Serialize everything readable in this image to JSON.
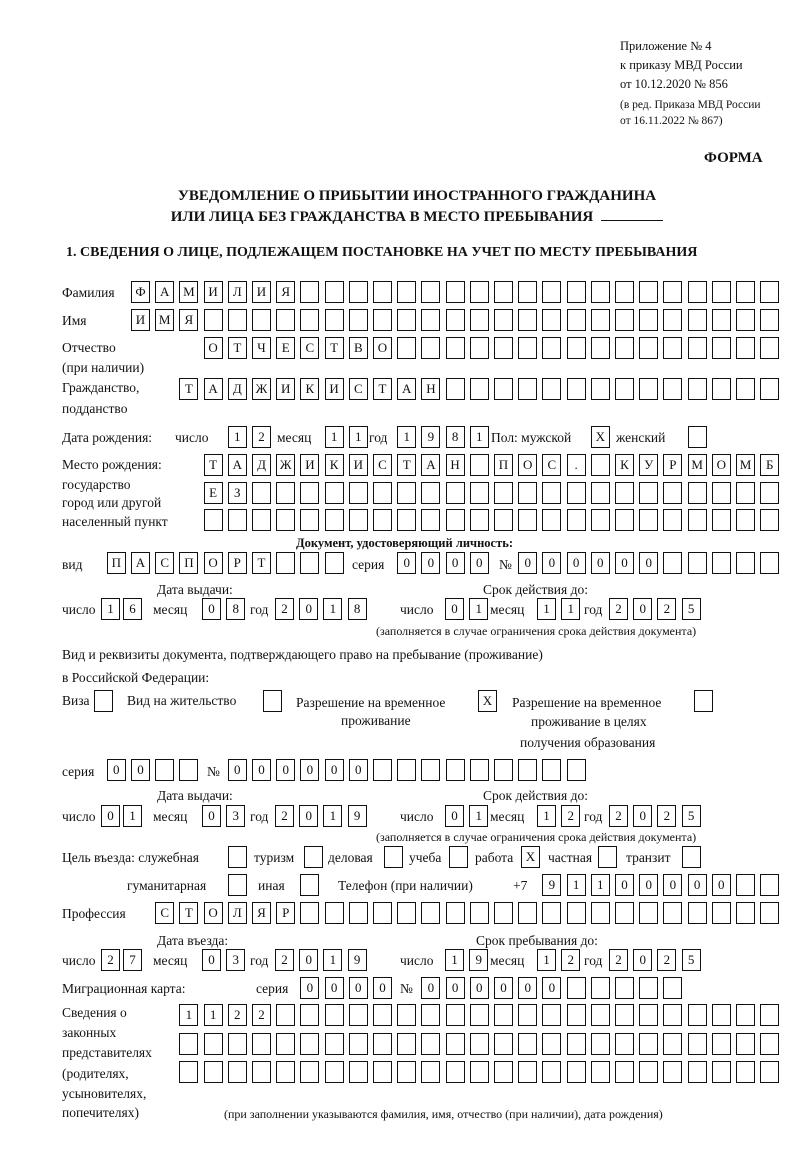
{
  "header": {
    "appendix": "Приложение № 4",
    "order": "к приказу МВД России",
    "order_date": "от 10.12.2020 № 856",
    "edition_1": "(в ред. Приказа МВД России",
    "edition_2": "от 16.11.2022 № 867)",
    "form_label": "ФОРМА",
    "title_1": "УВЕДОМЛЕНИЕ О ПРИБЫТИИ ИНОСТРАННОГО ГРАЖДАНИНА",
    "title_2": "ИЛИ ЛИЦА БЕЗ ГРАЖДАНСТВА В МЕСТО ПРЕБЫВАНИЯ",
    "section_1": "1. СВЕДЕНИЯ О ЛИЦЕ, ПОДЛЕЖАЩЕМ ПОСТАНОВКЕ НА УЧЕТ ПО МЕСТУ ПРЕБЫВАНИЯ"
  },
  "labels": {
    "surname": "Фамилия",
    "name": "Имя",
    "patronymic": "Отчество",
    "patronymic_note": "(при наличии)",
    "citizenship": "Гражданство,",
    "citizenship_2": "подданство",
    "birth_date": "Дата рождения:",
    "day": "число",
    "month": "месяц",
    "year": "год",
    "sex_male": "Пол: мужской",
    "sex_female": "женский",
    "birth_place": "Место рождения:",
    "birth_place_2": "государство",
    "birth_place_3": "город или другой",
    "birth_place_4": "населенный пункт",
    "id_doc": "Документ, удостоверяющий личность:",
    "kind": "вид",
    "series": "серия",
    "number": "№",
    "issue_date": "Дата выдачи:",
    "valid_until": "Срок действия до:",
    "valid_note": "(заполняется в случае ограничения срока действия документа)",
    "stay_doc_1": "Вид и реквизиты документа, подтверждающего право на пребывание (проживание)",
    "stay_doc_2": "в Российской Федерации:",
    "visa": "Виза",
    "residence": "Вид на жительство",
    "trp_1": "Разрешение на временное",
    "trp_2": "проживание",
    "trp_edu_1": "Разрешение на временное",
    "trp_edu_2": "проживание в целях",
    "trp_edu_3": "получения образования",
    "purpose": "Цель въезда: служебная",
    "tourism": "туризм",
    "business": "деловая",
    "study": "учеба",
    "work": "работа",
    "private": "частная",
    "transit": "транзит",
    "humanitarian": "гуманитарная",
    "other": "иная",
    "phone": "Телефон (при наличии)",
    "phone_prefix": "+7",
    "profession": "Профессия",
    "entry_date": "Дата въезда:",
    "stay_until": "Срок пребывания до:",
    "migration_card": "Миграционная карта:",
    "reps_1": "Сведения о",
    "reps_2": "законных",
    "reps_3": "представителях",
    "reps_4": "(родителях,",
    "reps_5": "усыновителях,",
    "reps_6": "попечителях)",
    "reps_note": "(при заполнении указываются фамилия, имя, отчество (при наличии), дата рождения)"
  },
  "values": {
    "surname": "ФАМИЛИЯ",
    "name": "ИМЯ",
    "patronymic": "ОТЧЕСТВО",
    "citizenship": "ТАДЖИКИСТАН",
    "birth_day": "12",
    "birth_month": "11",
    "birth_year": "1981",
    "sex_male": "X",
    "sex_female": "",
    "birth_place_1": "ТАДЖИКИСТАН ПОС. КУРМОМБ",
    "birth_place_2": "ЕЗ",
    "birth_place_3": "",
    "id_kind": "ПАСПОРТ",
    "id_series": "0000",
    "id_number": "000000",
    "id_issue_day": "16",
    "id_issue_month": "08",
    "id_issue_year": "2018",
    "id_valid_day": "01",
    "id_valid_month": "11",
    "id_valid_year": "2025",
    "visa": "",
    "residence": "",
    "trp": "X",
    "trp_edu": "",
    "stay_series": "00",
    "stay_number": "000000",
    "stay_issue_day": "01",
    "stay_issue_month": "03",
    "stay_issue_year": "2019",
    "stay_valid_day": "01",
    "stay_valid_month": "12",
    "stay_valid_year": "2025",
    "purpose_service": "",
    "purpose_tourism": "",
    "purpose_business": "",
    "purpose_study": "",
    "purpose_work": "X",
    "purpose_private": "",
    "purpose_transit": "",
    "purpose_humanitarian": "",
    "purpose_other": "",
    "phone": "91100000",
    "profession": "СТОЛЯР",
    "entry_day": "27",
    "entry_month": "03",
    "entry_year": "2019",
    "stay_until_day": "19",
    "stay_until_month": "12",
    "stay_until_year": "2025",
    "mc_series": "0000",
    "mc_number": "000000",
    "reps_1": "1122",
    "reps_2": "",
    "reps_3": ""
  }
}
